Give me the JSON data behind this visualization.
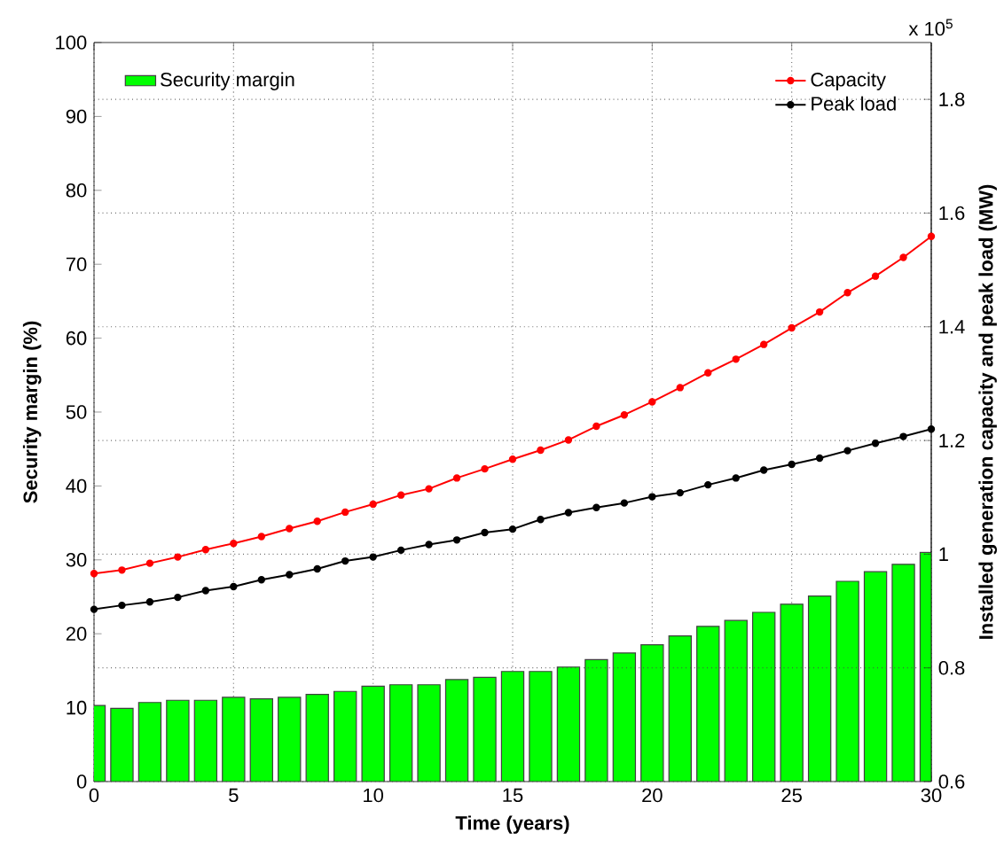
{
  "chart_data": {
    "type": "bar",
    "xlabel": "Time (years)",
    "ylabel": "Security margin (%)",
    "y2label": "Installed generation capacity and peak load (MW)",
    "x": [
      0,
      1,
      2,
      3,
      4,
      5,
      6,
      7,
      8,
      9,
      10,
      11,
      12,
      13,
      14,
      15,
      16,
      17,
      18,
      19,
      20,
      21,
      22,
      23,
      24,
      25,
      26,
      27,
      28,
      29,
      30
    ],
    "xlim": [
      0,
      30
    ],
    "xticks": [
      0,
      5,
      10,
      15,
      20,
      25,
      30
    ],
    "ylim": [
      0,
      100
    ],
    "yticks": [
      0,
      10,
      20,
      30,
      40,
      50,
      60,
      70,
      80,
      90,
      100
    ],
    "y2lim": [
      0.6,
      1.9
    ],
    "y2ticks": [
      0.6,
      0.8,
      1,
      1.2,
      1.4,
      1.6,
      1.8
    ],
    "grid": true,
    "legend": "top",
    "marker": "circle",
    "annotations": [
      "x 10$^{5}$"
    ],
    "series": [
      {
        "name": "Security margin",
        "color": "#00ff00",
        "values": [
          10.3,
          9.9,
          10.7,
          11.0,
          11.0,
          11.4,
          11.2,
          11.4,
          11.8,
          12.2,
          12.9,
          13.1,
          13.1,
          13.8,
          14.1,
          14.9,
          14.9,
          15.5,
          16.5,
          17.4,
          18.5,
          19.7,
          21.0,
          21.8,
          22.9,
          24.0,
          25.1,
          27.1,
          28.4,
          29.4,
          31.0
        ]
      },
      {
        "name": "Capacity",
        "type": "line",
        "axis": "y2",
        "color": "#ff0000",
        "values": [
          0.966,
          0.972,
          0.984,
          0.995,
          1.008,
          1.019,
          1.031,
          1.045,
          1.058,
          1.074,
          1.088,
          1.104,
          1.115,
          1.134,
          1.15,
          1.167,
          1.183,
          1.201,
          1.225,
          1.245,
          1.268,
          1.293,
          1.319,
          1.343,
          1.369,
          1.398,
          1.426,
          1.46,
          1.489,
          1.522,
          1.559
        ]
      },
      {
        "name": "Peak load",
        "type": "line",
        "axis": "y2",
        "color": "#000000",
        "values": [
          0.903,
          0.91,
          0.916,
          0.924,
          0.936,
          0.943,
          0.955,
          0.964,
          0.974,
          0.988,
          0.995,
          1.007,
          1.017,
          1.025,
          1.038,
          1.044,
          1.061,
          1.073,
          1.082,
          1.09,
          1.101,
          1.108,
          1.122,
          1.134,
          1.148,
          1.158,
          1.169,
          1.182,
          1.195,
          1.207,
          1.22
        ]
      }
    ]
  }
}
